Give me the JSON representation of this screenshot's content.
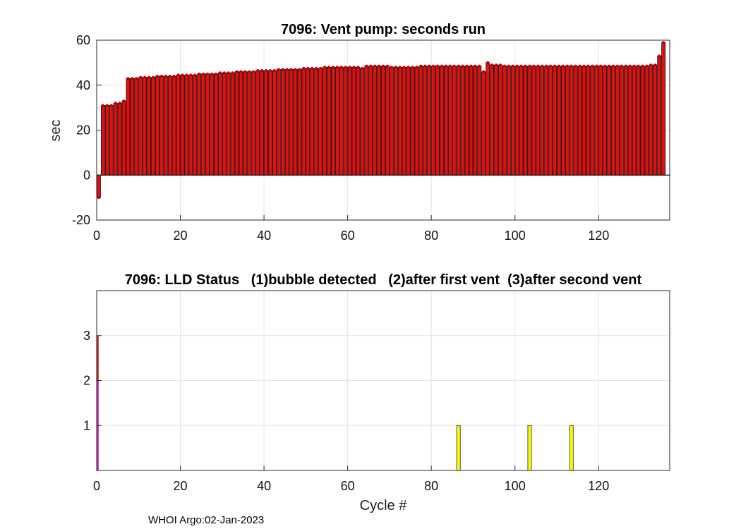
{
  "chart_data": [
    {
      "type": "bar",
      "title": "7096: Vent pump: seconds run",
      "xlabel": "",
      "ylabel": "sec",
      "xlim": [
        0,
        137
      ],
      "ylim": [
        -20,
        60
      ],
      "xticks": [
        0,
        20,
        40,
        60,
        80,
        100,
        120
      ],
      "yticks": [
        -20,
        0,
        20,
        40,
        60
      ],
      "grid": true,
      "bar_color": "#e01010",
      "marker_color": "#c40000",
      "x_start": 0,
      "values": [
        -10,
        31,
        31,
        31,
        32,
        32,
        33,
        43,
        43,
        43,
        43.5,
        43.5,
        43.5,
        43.5,
        44,
        44,
        44,
        44,
        44,
        44.5,
        44.5,
        44.5,
        44.5,
        44.5,
        45,
        45,
        45,
        45,
        45,
        45.5,
        45.5,
        45.5,
        45.5,
        46,
        46,
        46,
        46,
        46,
        46.5,
        46.5,
        46.5,
        46.5,
        46.5,
        47,
        47,
        47,
        47,
        47,
        47,
        47.5,
        47.5,
        47.5,
        47.5,
        47.5,
        48,
        48,
        48,
        48,
        48,
        48,
        48,
        48,
        48,
        47.5,
        48.5,
        48.5,
        48.5,
        48.5,
        48.5,
        48.5,
        48,
        48,
        48,
        48,
        48,
        48,
        48,
        48.5,
        48.5,
        48.5,
        48.5,
        48.5,
        48.5,
        48.5,
        48.5,
        48.5,
        48.5,
        48.5,
        48.5,
        48.5,
        48.5,
        48.5,
        46,
        50,
        49,
        49,
        49,
        48.5,
        48.5,
        48.5,
        48.5,
        48.5,
        48.5,
        48.5,
        48.5,
        48.5,
        48.5,
        48.5,
        48.5,
        48.5,
        48.5,
        48.5,
        48.5,
        48.5,
        48.5,
        48.5,
        48.5,
        48.5,
        48.5,
        48.5,
        48.5,
        48.5,
        48.5,
        48.5,
        48.5,
        48.5,
        48.5,
        48.5,
        48.5,
        48.5,
        48.5,
        48.5,
        49,
        49,
        53,
        59
      ]
    },
    {
      "type": "bar",
      "title": "7096: LLD Status   (1)bubble detected   (2)after first vent  (3)after second vent",
      "xlabel": "Cycle #",
      "ylabel": "",
      "xlim": [
        0,
        137
      ],
      "ylim": [
        0,
        4
      ],
      "xticks": [
        0,
        20,
        40,
        60,
        80,
        100,
        120
      ],
      "yticks": [
        1,
        2,
        3
      ],
      "grid": true,
      "bars": [
        {
          "x": 0,
          "value": 3,
          "color": "#c02020"
        },
        {
          "x": 0,
          "value": 2,
          "color": "#c030c0"
        },
        {
          "x": 86,
          "value": 1,
          "color": "#ffff00"
        },
        {
          "x": 103,
          "value": 1,
          "color": "#ffff00"
        },
        {
          "x": 113,
          "value": 1,
          "color": "#ffff00"
        }
      ]
    }
  ],
  "footer": {
    "text": "WHOI Argo:02-Jan-2023"
  }
}
